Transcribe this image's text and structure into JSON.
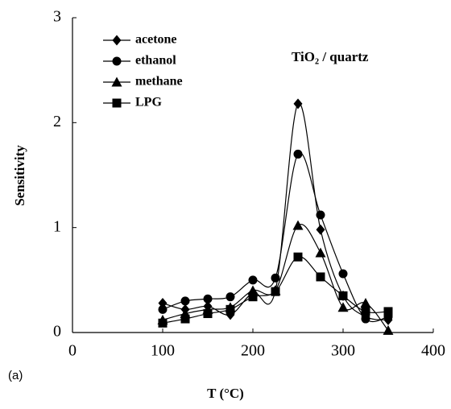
{
  "chart_data": {
    "type": "line",
    "annotation": "TiO₂ / quartz",
    "panel_label": "(a)",
    "xlabel": "T (°C)",
    "ylabel": "Sensitivity",
    "x": [
      100,
      125,
      150,
      175,
      200,
      225,
      250,
      275,
      300,
      325,
      350
    ],
    "series": [
      {
        "name": "acetone",
        "color": "#000000",
        "marker": "diamond",
        "values": [
          0.28,
          0.22,
          0.25,
          0.17,
          0.38,
          0.4,
          2.18,
          0.98,
          0.35,
          0.15,
          0.12
        ]
      },
      {
        "name": "ethanol",
        "color": "#000000",
        "marker": "circle",
        "values": [
          0.22,
          0.3,
          0.32,
          0.34,
          0.5,
          0.52,
          1.7,
          1.12,
          0.56,
          0.13,
          0.15
        ]
      },
      {
        "name": "methane",
        "color": "#000000",
        "marker": "triangle",
        "values": [
          0.12,
          0.18,
          0.22,
          0.24,
          0.4,
          0.4,
          1.02,
          0.76,
          0.24,
          0.28,
          0.02
        ]
      },
      {
        "name": "LPG",
        "color": "#000000",
        "marker": "square",
        "values": [
          0.09,
          0.13,
          0.18,
          0.22,
          0.34,
          0.39,
          0.72,
          0.53,
          0.35,
          0.2,
          0.2
        ]
      }
    ],
    "xlim": [
      0,
      400
    ],
    "xticks": [
      0,
      100,
      200,
      300,
      400
    ],
    "ylim": [
      0,
      3
    ],
    "yticks": [
      0,
      1,
      2,
      3
    ],
    "legend": "upper left"
  }
}
